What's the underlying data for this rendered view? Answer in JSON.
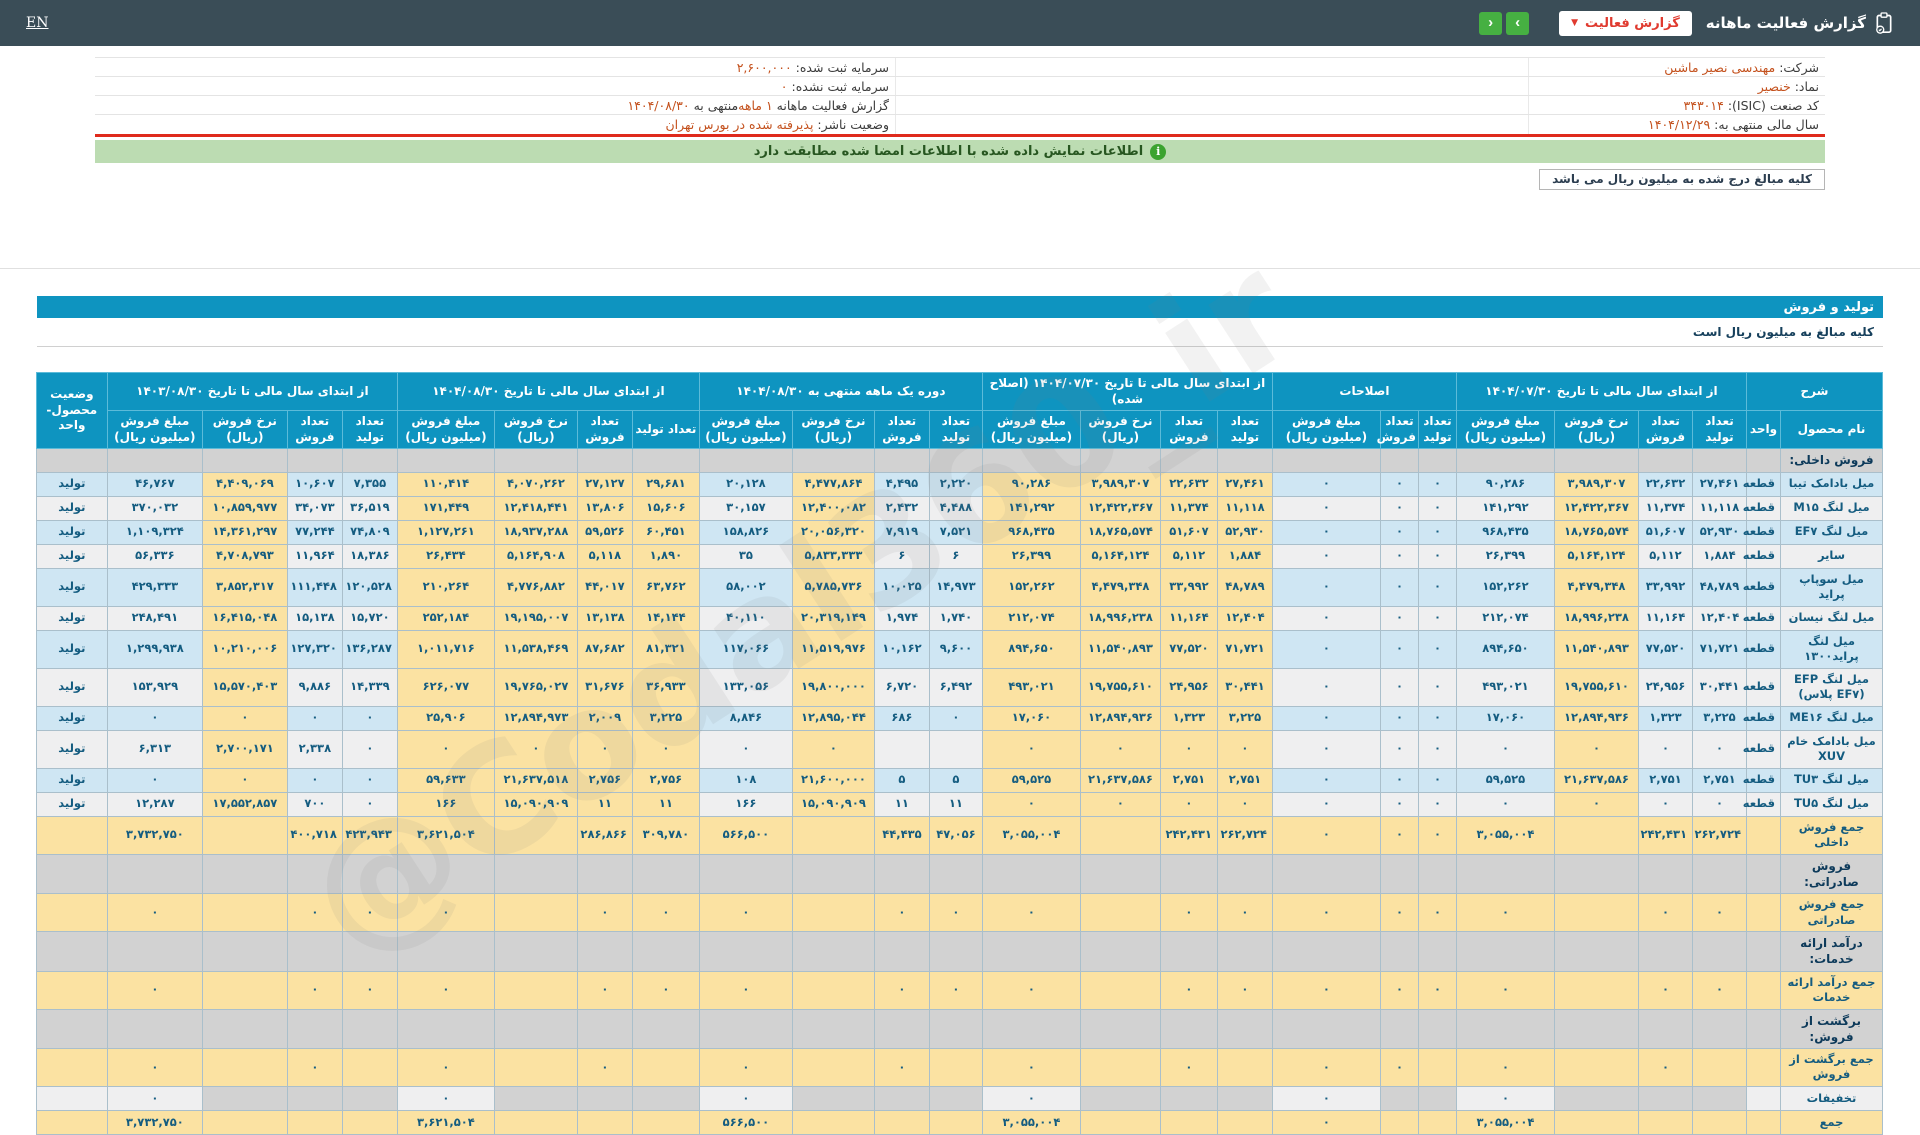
{
  "topbar": {
    "title": "گزارش فعالیت ماهانه",
    "report_button": "گزارش فعالیت",
    "dropdown_chevron": "▼",
    "nav_next": "›",
    "nav_prev": "‹",
    "language": "EN"
  },
  "info": {
    "rows": [
      {
        "right": [
          {
            "t": "شرکت:"
          },
          {
            "t": "مهندسی نصیر ماشین",
            "o": 1
          }
        ],
        "left": [
          {
            "t": "سرمایه ثبت شده:"
          },
          {
            "t": "۲,۶۰۰,۰۰۰",
            "o": 1
          }
        ]
      },
      {
        "right": [
          {
            "t": "نماد:"
          },
          {
            "t": "خنصیر",
            "o": 1
          }
        ],
        "left": [
          {
            "t": "سرمایه ثبت نشده:"
          },
          {
            "t": "۰",
            "o": 1
          }
        ]
      },
      {
        "right": [
          {
            "t": "کد صنعت (ISIC):"
          },
          {
            "t": "۳۴۳۰۱۴",
            "o": 1
          }
        ],
        "left": [
          {
            "t": "گزارش فعالیت ماهانه"
          },
          {
            "t": "۱ ماهه",
            "o": 1
          },
          {
            "t": "منتهی به"
          },
          {
            "t": "۱۴۰۴/۰۸/۳۰",
            "o": 1
          }
        ]
      },
      {
        "right": [
          {
            "t": "سال مالی منتهی به:"
          },
          {
            "t": "۱۴۰۴/۱۲/۲۹",
            "o": 1
          }
        ],
        "left": [
          {
            "t": "وضعیت ناشر:"
          },
          {
            "t": "پذیرفته شده در بورس تهران",
            "o": 1
          }
        ]
      }
    ]
  },
  "notice": {
    "text": "اطلاعات نمایش داده شده با اطلاعات امضا شده مطابقت دارد",
    "icon": "i"
  },
  "note_box": {
    "text": "کلیه مبالغ درج شده به میلیون ریال می باشد"
  },
  "production_section": {
    "bar_title": "تولید و فروش",
    "units_note": "کلیه مبالغ به میلیون ریال است"
  },
  "watermark": "@Codal360_ir",
  "colors": {
    "topbar": "#3a4d57",
    "accent_blue": "#0e94c0",
    "green_bar": "#bcdcb2",
    "green_button": "#46b042",
    "red": "#df2a1c",
    "orange_value": "#c4511d",
    "yellow_cell": "#fbe2a2",
    "blue_cell": "#cfe6f3",
    "gray_cell": "#d2d2d2",
    "text_data": "#145c80"
  },
  "table": {
    "desc_header": "شرح",
    "name_header": "نام محصول",
    "unit_header": "واحد",
    "status_header": "وضعیت محصول-واحد",
    "groups": [
      {
        "key": "g1",
        "label": "از ابتدای سال مالی تا تاریخ ۱۴۰۴/۰۷/۳۰",
        "cols": [
          "تعداد تولید",
          "تعداد فروش",
          "نرخ فروش (ریال)",
          "مبلغ فروش (میلیون ریال)"
        ]
      },
      {
        "key": "adj",
        "label": "اصلاحات",
        "cols": [
          "تعداد تولید",
          "تعداد فروش",
          "مبلغ فروش (میلیون ریال)"
        ]
      },
      {
        "key": "g3",
        "label": "از ابتدای سال مالی تا تاریخ ۱۴۰۴/۰۷/۳۰ (اصلاح شده)",
        "cols": [
          "تعداد تولید",
          "تعداد فروش",
          "نرخ فروش (ریال)",
          "مبلغ فروش (میلیون ریال)"
        ]
      },
      {
        "key": "g4",
        "label": "دوره یک ماهه منتهی به ۱۴۰۴/۰۸/۳۰",
        "cols": [
          "تعداد تولید",
          "تعداد فروش",
          "نرخ فروش (ریال)",
          "مبلغ فروش (میلیون ریال)"
        ]
      },
      {
        "key": "g5",
        "label": "از ابتدای سال مالی تا تاریخ ۱۴۰۴/۰۸/۳۰",
        "cols": [
          "تعداد تولید",
          "تعداد فروش",
          "نرخ فروش (ریال)",
          "مبلغ فروش (میلیون ریال)"
        ]
      },
      {
        "key": "g6",
        "label": "از ابتدای سال مالی تا تاریخ ۱۴۰۳/۰۸/۳۰",
        "cols": [
          "تعداد تولید",
          "تعداد فروش",
          "نرخ فروش (ریال)",
          "مبلغ فروش (میلیون ریال)"
        ]
      }
    ],
    "rows": [
      {
        "type": "section",
        "name": "فروش داخلی:"
      },
      {
        "type": "product",
        "name": "میل بادامک تیبا",
        "unit": "قطعه",
        "status": "تولید",
        "g1": [
          "۲۷,۴۶۱",
          "۲۲,۶۳۲",
          "۳,۹۸۹,۳۰۷",
          "۹۰,۲۸۶"
        ],
        "adj": [
          "۰",
          "۰",
          "۰"
        ],
        "g3": [
          "۲۷,۴۶۱",
          "۲۲,۶۳۲",
          "۳,۹۸۹,۳۰۷",
          "۹۰,۲۸۶"
        ],
        "g4": [
          "۲,۲۲۰",
          "۴,۴۹۵",
          "۴,۴۷۷,۸۶۴",
          "۲۰,۱۲۸"
        ],
        "g5": [
          "۲۹,۶۸۱",
          "۲۷,۱۲۷",
          "۴,۰۷۰,۲۶۲",
          "۱۱۰,۴۱۴"
        ],
        "g6": [
          "۷,۳۵۵",
          "۱۰,۶۰۷",
          "۴,۴۰۹,۰۶۹",
          "۴۶,۷۶۷"
        ]
      },
      {
        "type": "product",
        "name": "میل لنگ M۱۵",
        "unit": "قطعه",
        "status": "تولید",
        "g1": [
          "۱۱,۱۱۸",
          "۱۱,۳۷۴",
          "۱۲,۴۲۲,۳۶۷",
          "۱۴۱,۲۹۲"
        ],
        "adj": [
          "۰",
          "۰",
          "۰"
        ],
        "g3": [
          "۱۱,۱۱۸",
          "۱۱,۳۷۴",
          "۱۲,۴۲۲,۳۶۷",
          "۱۴۱,۲۹۲"
        ],
        "g4": [
          "۴,۴۸۸",
          "۲,۴۳۲",
          "۱۲,۴۰۰,۰۸۲",
          "۳۰,۱۵۷"
        ],
        "g5": [
          "۱۵,۶۰۶",
          "۱۳,۸۰۶",
          "۱۲,۴۱۸,۴۴۱",
          "۱۷۱,۴۴۹"
        ],
        "g6": [
          "۳۶,۵۱۹",
          "۳۴,۰۷۳",
          "۱۰,۸۵۹,۹۷۷",
          "۳۷۰,۰۳۲"
        ]
      },
      {
        "type": "product",
        "name": "میل لنگ EF۷",
        "unit": "قطعه",
        "status": "تولید",
        "g1": [
          "۵۲,۹۳۰",
          "۵۱,۶۰۷",
          "۱۸,۷۶۵,۵۷۴",
          "۹۶۸,۴۳۵"
        ],
        "adj": [
          "۰",
          "۰",
          "۰"
        ],
        "g3": [
          "۵۲,۹۳۰",
          "۵۱,۶۰۷",
          "۱۸,۷۶۵,۵۷۴",
          "۹۶۸,۴۳۵"
        ],
        "g4": [
          "۷,۵۲۱",
          "۷,۹۱۹",
          "۲۰,۰۵۶,۳۲۰",
          "۱۵۸,۸۲۶"
        ],
        "g5": [
          "۶۰,۴۵۱",
          "۵۹,۵۲۶",
          "۱۸,۹۳۷,۲۸۸",
          "۱,۱۲۷,۲۶۱"
        ],
        "g6": [
          "۷۴,۸۰۹",
          "۷۷,۲۴۴",
          "۱۴,۳۶۱,۲۹۷",
          "۱,۱۰۹,۳۲۴"
        ]
      },
      {
        "type": "product",
        "name": "سایر",
        "unit": "قطعه",
        "status": "تولید",
        "g1": [
          "۱,۸۸۴",
          "۵,۱۱۲",
          "۵,۱۶۴,۱۲۴",
          "۲۶,۳۹۹"
        ],
        "adj": [
          "۰",
          "۰",
          "۰"
        ],
        "g3": [
          "۱,۸۸۴",
          "۵,۱۱۲",
          "۵,۱۶۴,۱۲۴",
          "۲۶,۳۹۹"
        ],
        "g4": [
          "۶",
          "۶",
          "۵,۸۳۳,۳۳۳",
          "۳۵"
        ],
        "g5": [
          "۱,۸۹۰",
          "۵,۱۱۸",
          "۵,۱۶۴,۹۰۸",
          "۲۶,۴۳۴"
        ],
        "g6": [
          "۱۸,۳۸۶",
          "۱۱,۹۶۴",
          "۴,۷۰۸,۷۹۳",
          "۵۶,۳۳۶"
        ]
      },
      {
        "type": "product",
        "name": "میل سوپاپ پراید",
        "unit": "قطعه",
        "status": "تولید",
        "g1": [
          "۴۸,۷۸۹",
          "۳۳,۹۹۲",
          "۴,۴۷۹,۳۴۸",
          "۱۵۲,۲۶۲"
        ],
        "adj": [
          "۰",
          "۰",
          "۰"
        ],
        "g3": [
          "۴۸,۷۸۹",
          "۳۳,۹۹۲",
          "۴,۴۷۹,۳۴۸",
          "۱۵۲,۲۶۲"
        ],
        "g4": [
          "۱۴,۹۷۳",
          "۱۰,۰۲۵",
          "۵,۷۸۵,۷۳۶",
          "۵۸,۰۰۲"
        ],
        "g5": [
          "۶۳,۷۶۲",
          "۴۴,۰۱۷",
          "۴,۷۷۶,۸۸۲",
          "۲۱۰,۲۶۴"
        ],
        "g6": [
          "۱۲۰,۵۲۸",
          "۱۱۱,۴۴۸",
          "۳,۸۵۲,۳۱۷",
          "۴۲۹,۳۳۳"
        ]
      },
      {
        "type": "product",
        "name": "میل لنگ نیسان",
        "unit": "قطعه",
        "status": "تولید",
        "g1": [
          "۱۲,۴۰۴",
          "۱۱,۱۶۴",
          "۱۸,۹۹۶,۲۳۸",
          "۲۱۲,۰۷۴"
        ],
        "adj": [
          "۰",
          "۰",
          "۰"
        ],
        "g3": [
          "۱۲,۴۰۴",
          "۱۱,۱۶۴",
          "۱۸,۹۹۶,۲۳۸",
          "۲۱۲,۰۷۴"
        ],
        "g4": [
          "۱,۷۴۰",
          "۱,۹۷۴",
          "۲۰,۳۱۹,۱۴۹",
          "۴۰,۱۱۰"
        ],
        "g5": [
          "۱۴,۱۴۴",
          "۱۳,۱۳۸",
          "۱۹,۱۹۵,۰۰۷",
          "۲۵۲,۱۸۴"
        ],
        "g6": [
          "۱۵,۷۲۰",
          "۱۵,۱۳۸",
          "۱۶,۴۱۵,۰۴۸",
          "۲۴۸,۴۹۱"
        ]
      },
      {
        "type": "product",
        "name": "میل لنگ پراید۱۳۰۰",
        "unit": "قطعه",
        "status": "تولید",
        "g1": [
          "۷۱,۷۲۱",
          "۷۷,۵۲۰",
          "۱۱,۵۴۰,۸۹۳",
          "۸۹۴,۶۵۰"
        ],
        "adj": [
          "۰",
          "۰",
          "۰"
        ],
        "g3": [
          "۷۱,۷۲۱",
          "۷۷,۵۲۰",
          "۱۱,۵۴۰,۸۹۳",
          "۸۹۴,۶۵۰"
        ],
        "g4": [
          "۹,۶۰۰",
          "۱۰,۱۶۲",
          "۱۱,۵۱۹,۹۷۶",
          "۱۱۷,۰۶۶"
        ],
        "g5": [
          "۸۱,۳۲۱",
          "۸۷,۶۸۲",
          "۱۱,۵۳۸,۴۶۹",
          "۱,۰۱۱,۷۱۶"
        ],
        "g6": [
          "۱۳۶,۲۸۷",
          "۱۲۷,۳۲۰",
          "۱۰,۲۱۰,۰۰۶",
          "۱,۲۹۹,۹۳۸"
        ]
      },
      {
        "type": "product",
        "name": "میل لنگ EFP (EF۷ پلاس)",
        "unit": "قطعه",
        "status": "تولید",
        "g1": [
          "۳۰,۴۴۱",
          "۲۴,۹۵۶",
          "۱۹,۷۵۵,۶۱۰",
          "۴۹۳,۰۲۱"
        ],
        "adj": [
          "۰",
          "۰",
          "۰"
        ],
        "g3": [
          "۳۰,۴۴۱",
          "۲۴,۹۵۶",
          "۱۹,۷۵۵,۶۱۰",
          "۴۹۳,۰۲۱"
        ],
        "g4": [
          "۶,۴۹۲",
          "۶,۷۲۰",
          "۱۹,۸۰۰,۰۰۰",
          "۱۳۳,۰۵۶"
        ],
        "g5": [
          "۳۶,۹۳۳",
          "۳۱,۶۷۶",
          "۱۹,۷۶۵,۰۲۷",
          "۶۲۶,۰۷۷"
        ],
        "g6": [
          "۱۴,۳۳۹",
          "۹,۸۸۶",
          "۱۵,۵۷۰,۴۰۳",
          "۱۵۳,۹۲۹"
        ]
      },
      {
        "type": "product",
        "name": "میل لنگ ME۱۶",
        "unit": "قطعه",
        "status": "تولید",
        "g1": [
          "۳,۲۲۵",
          "۱,۳۲۳",
          "۱۲,۸۹۴,۹۳۶",
          "۱۷,۰۶۰"
        ],
        "adj": [
          "۰",
          "۰",
          "۰"
        ],
        "g3": [
          "۳,۲۲۵",
          "۱,۳۲۳",
          "۱۲,۸۹۴,۹۳۶",
          "۱۷,۰۶۰"
        ],
        "g4": [
          "۰",
          "۶۸۶",
          "۱۲,۸۹۵,۰۴۴",
          "۸,۸۴۶"
        ],
        "g5": [
          "۳,۲۲۵",
          "۲,۰۰۹",
          "۱۲,۸۹۴,۹۷۳",
          "۲۵,۹۰۶"
        ],
        "g6": [
          "۰",
          "۰",
          "۰",
          "۰"
        ]
      },
      {
        "type": "product",
        "name": "میل بادامک خام XUV",
        "unit": "قطعه",
        "status": "تولید",
        "g1": [
          "۰",
          "۰",
          "۰",
          "۰"
        ],
        "adj": [
          "۰",
          "۰",
          "۰"
        ],
        "g3": [
          "۰",
          "۰",
          "۰",
          "۰"
        ],
        "g4": [
          "",
          "",
          "۰",
          "۰"
        ],
        "g5": [
          "۰",
          "۰",
          "۰",
          "۰"
        ],
        "g6": [
          "۰",
          "۲,۳۳۸",
          "۲,۷۰۰,۱۷۱",
          "۶,۳۱۳"
        ]
      },
      {
        "type": "product",
        "name": "میل لنگ TU۳",
        "unit": "قطعه",
        "status": "تولید",
        "g1": [
          "۲,۷۵۱",
          "۲,۷۵۱",
          "۲۱,۶۳۷,۵۸۶",
          "۵۹,۵۲۵"
        ],
        "adj": [
          "۰",
          "۰",
          "۰"
        ],
        "g3": [
          "۲,۷۵۱",
          "۲,۷۵۱",
          "۲۱,۶۳۷,۵۸۶",
          "۵۹,۵۲۵"
        ],
        "g4": [
          "۵",
          "۵",
          "۲۱,۶۰۰,۰۰۰",
          "۱۰۸"
        ],
        "g5": [
          "۲,۷۵۶",
          "۲,۷۵۶",
          "۲۱,۶۳۷,۵۱۸",
          "۵۹,۶۳۳"
        ],
        "g6": [
          "۰",
          "۰",
          "۰",
          "۰"
        ]
      },
      {
        "type": "product",
        "name": "میل لنگ TU۵",
        "unit": "قطعه",
        "status": "تولید",
        "g1": [
          "۰",
          "۰",
          "۰",
          "۰"
        ],
        "adj": [
          "۰",
          "۰",
          "۰"
        ],
        "g3": [
          "۰",
          "۰",
          "۰",
          "۰"
        ],
        "g4": [
          "۱۱",
          "۱۱",
          "۱۵,۰۹۰,۹۰۹",
          "۱۶۶"
        ],
        "g5": [
          "۱۱",
          "۱۱",
          "۱۵,۰۹۰,۹۰۹",
          "۱۶۶"
        ],
        "g6": [
          "۰",
          "۷۰۰",
          "۱۷,۵۵۲,۸۵۷",
          "۱۲,۲۸۷"
        ]
      },
      {
        "type": "total",
        "name": "جمع فروش داخلی",
        "g1": [
          "۲۶۲,۷۲۴",
          "۲۴۲,۴۳۱",
          "",
          "۳,۰۵۵,۰۰۴"
        ],
        "adj": [
          "۰",
          "۰",
          "۰"
        ],
        "g3": [
          "۲۶۲,۷۲۴",
          "۲۴۲,۴۳۱",
          "",
          "۳,۰۵۵,۰۰۴"
        ],
        "g4": [
          "۴۷,۰۵۶",
          "۴۴,۴۳۵",
          "",
          "۵۶۶,۵۰۰"
        ],
        "g5": [
          "۳۰۹,۷۸۰",
          "۲۸۶,۸۶۶",
          "",
          "۳,۶۲۱,۵۰۴"
        ],
        "g6": [
          "۴۲۳,۹۴۳",
          "۴۰۰,۷۱۸",
          "",
          "۳,۷۳۲,۷۵۰"
        ]
      },
      {
        "type": "section",
        "name": "فروش صادراتی:"
      },
      {
        "type": "total",
        "name": "جمع فروش صادراتی",
        "g1": [
          "۰",
          "۰",
          "",
          "۰"
        ],
        "adj": [
          "۰",
          "۰",
          "۰"
        ],
        "g3": [
          "۰",
          "۰",
          "",
          "۰"
        ],
        "g4": [
          "۰",
          "۰",
          "",
          "۰"
        ],
        "g5": [
          "۰",
          "۰",
          "",
          "۰"
        ],
        "g6": [
          "۰",
          "۰",
          "",
          "۰"
        ]
      },
      {
        "type": "section",
        "name": "درآمد ارائه خدمات:"
      },
      {
        "type": "total",
        "name": "جمع درآمد ارائه خدمات",
        "g1": [
          "۰",
          "۰",
          "",
          "۰"
        ],
        "adj": [
          "۰",
          "۰",
          "۰"
        ],
        "g3": [
          "۰",
          "۰",
          "",
          "۰"
        ],
        "g4": [
          "۰",
          "۰",
          "",
          "۰"
        ],
        "g5": [
          "۰",
          "۰",
          "",
          "۰"
        ],
        "g6": [
          "۰",
          "۰",
          "",
          "۰"
        ]
      },
      {
        "type": "section",
        "name": "برگشت از فروش:"
      },
      {
        "type": "total",
        "name": "جمع برگشت از فروش",
        "g1": [
          "",
          "۰",
          "",
          "۰"
        ],
        "adj": [
          "",
          "۰",
          "۰"
        ],
        "g3": [
          "",
          "۰",
          "",
          "۰"
        ],
        "g4": [
          "",
          "۰",
          "",
          "۰"
        ],
        "g5": [
          "",
          "۰",
          "",
          "۰"
        ],
        "g6": [
          "",
          "۰",
          "",
          "۰"
        ]
      },
      {
        "type": "discount",
        "name": "تخفیفات",
        "g1": [
          "",
          "",
          "",
          "۰"
        ],
        "adj": [
          "",
          "",
          "۰"
        ],
        "g3": [
          "",
          "",
          "",
          "۰"
        ],
        "g4": [
          "",
          "",
          "",
          "۰"
        ],
        "g5": [
          "",
          "",
          "",
          "۰"
        ],
        "g6": [
          "",
          "",
          "",
          "۰"
        ]
      },
      {
        "type": "grand",
        "name": "جمع",
        "g1": [
          "",
          "",
          "",
          "۳,۰۵۵,۰۰۴"
        ],
        "adj": [
          "",
          "",
          "۰"
        ],
        "g3": [
          "",
          "",
          "",
          "۳,۰۵۵,۰۰۴"
        ],
        "g4": [
          "",
          "",
          "",
          "۵۶۶,۵۰۰"
        ],
        "g5": [
          "",
          "",
          "",
          "۳,۶۲۱,۵۰۴"
        ],
        "g6": [
          "",
          "",
          "",
          "۳,۷۳۲,۷۵۰"
        ]
      }
    ]
  }
}
